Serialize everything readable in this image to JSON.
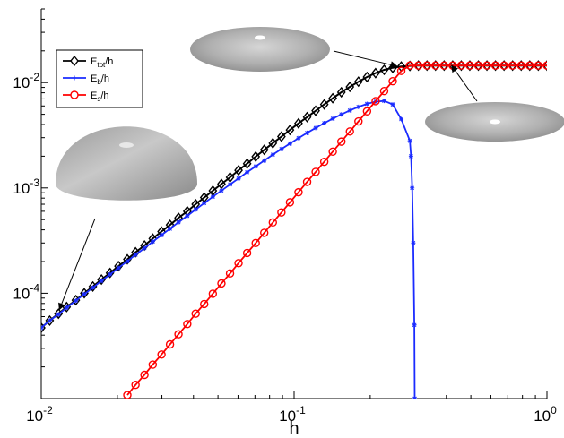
{
  "chart_data": {
    "type": "line",
    "title": "",
    "xlabel": "h",
    "ylabel": "",
    "xscale": "log",
    "yscale": "log",
    "xlim": [
      0.01,
      1.0
    ],
    "ylim": [
      1e-05,
      0.05
    ],
    "grid": false,
    "legend_position": "top-left",
    "x_ticks": [
      {
        "value": 0.01,
        "base": "10",
        "exp": "-2"
      },
      {
        "value": 0.1,
        "base": "10",
        "exp": "-1"
      },
      {
        "value": 1.0,
        "base": "10",
        "exp": "0"
      }
    ],
    "y_ticks": [
      {
        "value": 0.0001,
        "base": "10",
        "exp": "-4"
      },
      {
        "value": 0.001,
        "base": "10",
        "exp": "-3"
      },
      {
        "value": 0.01,
        "base": "10",
        "exp": "-2"
      }
    ],
    "legend": [
      {
        "main": "E",
        "sub": "tot",
        "suffix": "/h"
      },
      {
        "main": "E",
        "sub": "b",
        "suffix": "/h"
      },
      {
        "main": "E",
        "sub": "s",
        "suffix": "/h"
      }
    ],
    "series": [
      {
        "color": "#000000",
        "marker": "diamond",
        "points": [
          [
            0.01,
            4.7e-05
          ],
          [
            0.0108,
            5.5e-05
          ],
          [
            0.0117,
            6.4e-05
          ],
          [
            0.0126,
            7.4e-05
          ],
          [
            0.0137,
            8.6e-05
          ],
          [
            0.0148,
            0.0001
          ],
          [
            0.016,
            0.000116
          ],
          [
            0.0173,
            0.000135
          ],
          [
            0.0187,
            0.000156
          ],
          [
            0.0202,
            0.000181
          ],
          [
            0.0219,
            0.00021
          ],
          [
            0.0236,
            0.000245
          ],
          [
            0.0256,
            0.000284
          ],
          [
            0.0276,
            0.00033
          ],
          [
            0.0299,
            0.000385
          ],
          [
            0.0323,
            0.000445
          ],
          [
            0.0349,
            0.00052
          ],
          [
            0.0378,
            0.0006
          ],
          [
            0.0408,
            0.0007
          ],
          [
            0.0441,
            0.00081
          ],
          [
            0.0477,
            0.00094
          ],
          [
            0.0516,
            0.00109
          ],
          [
            0.0558,
            0.00126
          ],
          [
            0.0603,
            0.00147
          ],
          [
            0.0652,
            0.0017
          ],
          [
            0.0705,
            0.00198
          ],
          [
            0.0762,
            0.0023
          ],
          [
            0.0824,
            0.00266
          ],
          [
            0.0891,
            0.00307
          ],
          [
            0.0963,
            0.00355
          ],
          [
            0.1041,
            0.0041
          ],
          [
            0.1126,
            0.0047
          ],
          [
            0.1217,
            0.0054
          ],
          [
            0.1316,
            0.0062
          ],
          [
            0.1422,
            0.0071
          ],
          [
            0.1538,
            0.0081
          ],
          [
            0.1662,
            0.0091
          ],
          [
            0.1797,
            0.0102
          ],
          [
            0.1943,
            0.0113
          ],
          [
            0.2101,
            0.0123
          ],
          [
            0.2271,
            0.0132
          ],
          [
            0.2455,
            0.0138
          ],
          [
            0.2654,
            0.0142
          ],
          [
            0.287,
            0.0144
          ],
          [
            0.3102,
            0.0145
          ],
          [
            0.3354,
            0.0145
          ],
          [
            0.3626,
            0.0145
          ],
          [
            0.392,
            0.0145
          ],
          [
            0.4238,
            0.0145
          ],
          [
            0.4582,
            0.0145
          ],
          [
            0.4953,
            0.0145
          ],
          [
            0.5355,
            0.0145
          ],
          [
            0.5789,
            0.0145
          ],
          [
            0.6258,
            0.0145
          ],
          [
            0.6766,
            0.0145
          ],
          [
            0.7314,
            0.0145
          ],
          [
            0.7907,
            0.0145
          ],
          [
            0.8548,
            0.0145
          ],
          [
            0.9241,
            0.0145
          ],
          [
            1.0,
            0.0145
          ]
        ]
      },
      {
        "color": "#1a2bff",
        "marker": "star",
        "points": [
          [
            0.01,
            4.7e-05
          ],
          [
            0.0108,
            5.5e-05
          ],
          [
            0.0117,
            6.3e-05
          ],
          [
            0.0126,
            7.3e-05
          ],
          [
            0.0137,
            8.5e-05
          ],
          [
            0.0148,
            9.8e-05
          ],
          [
            0.016,
            0.000113
          ],
          [
            0.0173,
            0.000131
          ],
          [
            0.0187,
            0.000151
          ],
          [
            0.0202,
            0.000174
          ],
          [
            0.0219,
            0.000201
          ],
          [
            0.0236,
            0.000232
          ],
          [
            0.0256,
            0.000268
          ],
          [
            0.0276,
            0.000309
          ],
          [
            0.0299,
            0.000356
          ],
          [
            0.0323,
            0.00041
          ],
          [
            0.0349,
            0.000472
          ],
          [
            0.0378,
            0.000543
          ],
          [
            0.0408,
            0.000624
          ],
          [
            0.0441,
            0.000717
          ],
          [
            0.0477,
            0.000823
          ],
          [
            0.0516,
            0.000943
          ],
          [
            0.0558,
            0.00108
          ],
          [
            0.0603,
            0.00123
          ],
          [
            0.0652,
            0.00141
          ],
          [
            0.0705,
            0.0016
          ],
          [
            0.0762,
            0.00182
          ],
          [
            0.0824,
            0.00207
          ],
          [
            0.0891,
            0.00234
          ],
          [
            0.0963,
            0.00264
          ],
          [
            0.1041,
            0.00297
          ],
          [
            0.1126,
            0.00333
          ],
          [
            0.1217,
            0.00371
          ],
          [
            0.1316,
            0.00412
          ],
          [
            0.1422,
            0.00455
          ],
          [
            0.1538,
            0.00499
          ],
          [
            0.1662,
            0.00544
          ],
          [
            0.1797,
            0.00588
          ],
          [
            0.1943,
            0.00628
          ],
          [
            0.2101,
            0.00659
          ],
          [
            0.2271,
            0.0067
          ],
          [
            0.2455,
            0.0062
          ],
          [
            0.2654,
            0.0045
          ],
          [
            0.287,
            0.0028
          ],
          [
            0.29,
            0.002
          ],
          [
            0.293,
            0.001
          ],
          [
            0.296,
            0.0003
          ],
          [
            0.299,
            5e-05
          ],
          [
            0.3,
            1e-05
          ]
        ]
      },
      {
        "color": "#ff0000",
        "marker": "circle",
        "points": [
          [
            0.0219,
            1.08e-05
          ],
          [
            0.0236,
            1.35e-05
          ],
          [
            0.0256,
            1.68e-05
          ],
          [
            0.0276,
            2.1e-05
          ],
          [
            0.0299,
            2.62e-05
          ],
          [
            0.0323,
            3.27e-05
          ],
          [
            0.0349,
            4.08e-05
          ],
          [
            0.0378,
            5.1e-05
          ],
          [
            0.0408,
            6.4e-05
          ],
          [
            0.0441,
            7.9e-05
          ],
          [
            0.0477,
            9.9e-05
          ],
          [
            0.0516,
            0.000124
          ],
          [
            0.0558,
            0.000154
          ],
          [
            0.0603,
            0.000193
          ],
          [
            0.0652,
            0.000241
          ],
          [
            0.0705,
            0.0003
          ],
          [
            0.0762,
            0.000375
          ],
          [
            0.0824,
            0.00047
          ],
          [
            0.0891,
            0.000585
          ],
          [
            0.0963,
            0.00073
          ],
          [
            0.1041,
            0.00091
          ],
          [
            0.1126,
            0.00114
          ],
          [
            0.1217,
            0.00142
          ],
          [
            0.1316,
            0.00177
          ],
          [
            0.1422,
            0.00221
          ],
          [
            0.1538,
            0.00275
          ],
          [
            0.1662,
            0.00343
          ],
          [
            0.1797,
            0.00428
          ],
          [
            0.1943,
            0.00534
          ],
          [
            0.2101,
            0.00666
          ],
          [
            0.2271,
            0.0083
          ],
          [
            0.2455,
            0.0103
          ],
          [
            0.2654,
            0.0129
          ],
          [
            0.287,
            0.0145
          ],
          [
            0.3102,
            0.0145
          ],
          [
            0.3354,
            0.0145
          ],
          [
            0.3626,
            0.0145
          ],
          [
            0.392,
            0.0145
          ],
          [
            0.4238,
            0.0145
          ],
          [
            0.4582,
            0.0145
          ],
          [
            0.4953,
            0.0145
          ],
          [
            0.5355,
            0.0145
          ],
          [
            0.5789,
            0.0145
          ],
          [
            0.6258,
            0.0145
          ],
          [
            0.6766,
            0.0145
          ],
          [
            0.7314,
            0.0145
          ],
          [
            0.7907,
            0.0145
          ],
          [
            0.8548,
            0.0145
          ],
          [
            0.9241,
            0.0145
          ],
          [
            1.0,
            0.0145
          ]
        ]
      }
    ],
    "annotations": [
      {
        "shape": "flat-disc-with-hole",
        "position": "top-center",
        "points_to": [
          0.255,
          0.0143
        ]
      },
      {
        "shape": "flat-disc-with-hole",
        "position": "right",
        "points_to": [
          0.42,
          0.0145
        ]
      },
      {
        "shape": "dome",
        "position": "left",
        "points_to": [
          0.0118,
          7e-05
        ]
      }
    ]
  }
}
